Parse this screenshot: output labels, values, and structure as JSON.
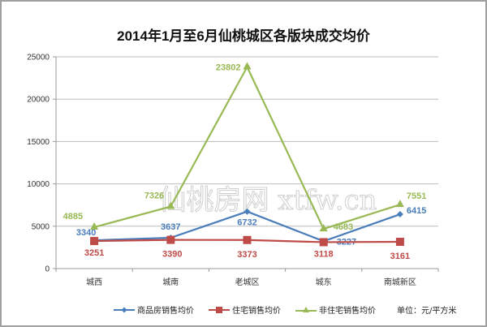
{
  "chart_data": {
    "type": "line",
    "title": "2014年1月至6月仙桃城区各版块成交均价",
    "xlabel": "",
    "ylabel": "",
    "ylim": [
      0,
      25000
    ],
    "yticks": [
      0,
      5000,
      10000,
      15000,
      20000,
      25000
    ],
    "grid": true,
    "legend_position": "bottom",
    "categories": [
      "城西",
      "城南",
      "老城区",
      "城东",
      "南城新区"
    ],
    "series": [
      {
        "name": "商品房销售均价",
        "color": "#4a7ebb",
        "marker": "diamond",
        "values": [
          3340,
          3637,
          6732,
          3227,
          6415
        ]
      },
      {
        "name": "住宅销售均价",
        "color": "#be4b48",
        "marker": "square",
        "values": [
          3251,
          3390,
          3373,
          3118,
          3161
        ]
      },
      {
        "name": "非住宅销售均价",
        "color": "#98b954",
        "marker": "triangle",
        "values": [
          4885,
          7326,
          23802,
          4683,
          7551
        ]
      }
    ],
    "annotations": [
      "单位：元/平方米",
      "仙桃房网 xtfw.cn (watermark)"
    ]
  },
  "title": "2014年1月至6月仙桃城区各版块成交均价",
  "legend": {
    "s0": "商品房销售均价",
    "s1": "住宅销售均价",
    "s2": "非住宅销售均价",
    "unit": "单位：元/平方米"
  },
  "watermark": "仙桃房网 xtfw.cn"
}
